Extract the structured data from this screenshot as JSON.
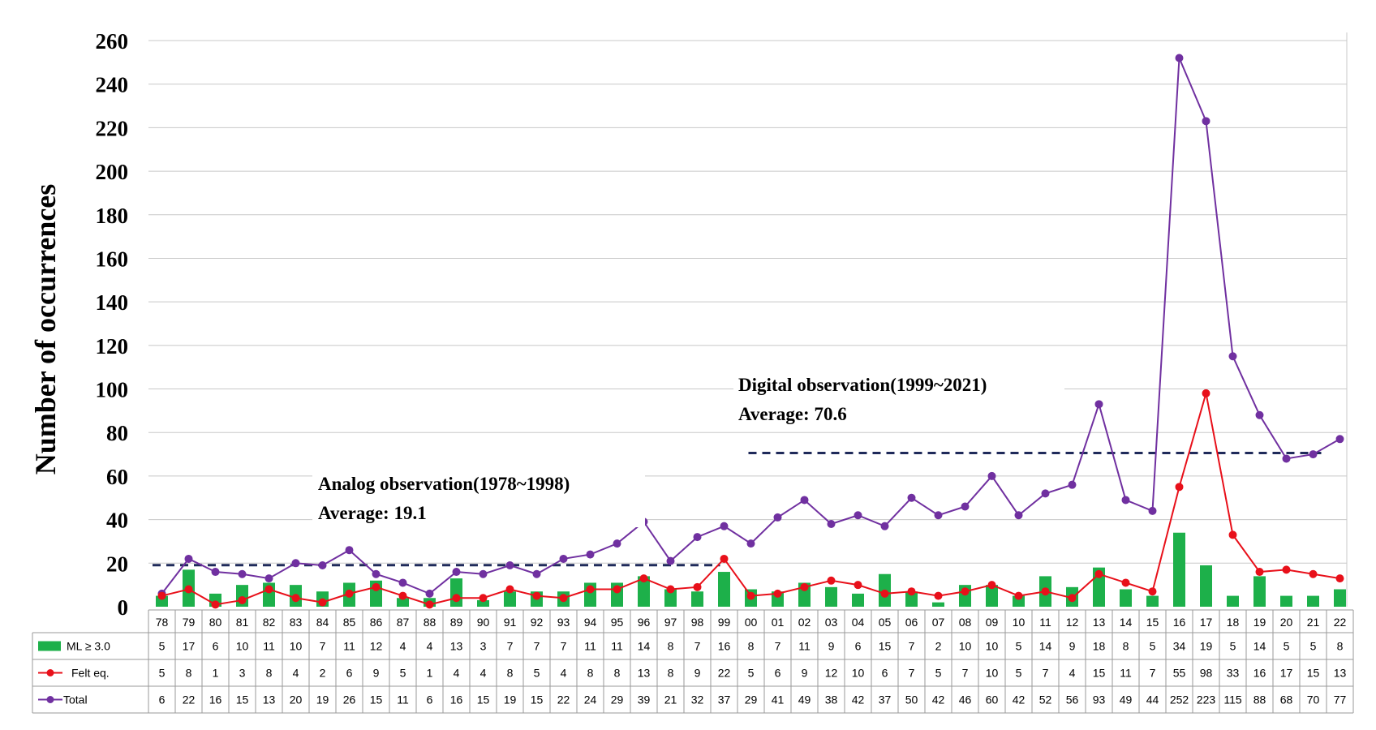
{
  "chart_data": {
    "type": "bar",
    "ylabel": "Number of occurrences",
    "ylim": [
      0,
      260
    ],
    "yticks": [
      0,
      20,
      40,
      60,
      80,
      100,
      120,
      140,
      160,
      180,
      200,
      220,
      240,
      260
    ],
    "categories": [
      "78",
      "79",
      "80",
      "81",
      "82",
      "83",
      "84",
      "85",
      "86",
      "87",
      "88",
      "89",
      "90",
      "91",
      "92",
      "93",
      "94",
      "95",
      "96",
      "97",
      "98",
      "99",
      "00",
      "01",
      "02",
      "03",
      "04",
      "05",
      "06",
      "07",
      "08",
      "09",
      "10",
      "11",
      "12",
      "13",
      "14",
      "15",
      "16",
      "17",
      "18",
      "19",
      "20",
      "21",
      "22"
    ],
    "series": [
      {
        "name": "ML ≥ 3.0",
        "type": "bar",
        "color": "#1DB04A",
        "values": [
          5,
          17,
          6,
          10,
          11,
          10,
          7,
          11,
          12,
          4,
          4,
          13,
          3,
          7,
          7,
          7,
          11,
          11,
          14,
          8,
          7,
          16,
          8,
          7,
          11,
          9,
          6,
          15,
          7,
          2,
          10,
          10,
          5,
          14,
          9,
          18,
          8,
          5,
          34,
          19,
          5,
          14,
          5,
          5,
          8
        ]
      },
      {
        "name": "Felt eq.",
        "type": "line",
        "color": "#E8101A",
        "values": [
          5,
          8,
          1,
          3,
          8,
          4,
          2,
          6,
          9,
          5,
          1,
          4,
          4,
          8,
          5,
          4,
          8,
          8,
          13,
          8,
          9,
          22,
          5,
          6,
          9,
          12,
          10,
          6,
          7,
          5,
          7,
          10,
          5,
          7,
          4,
          15,
          11,
          7,
          55,
          98,
          33,
          16,
          17,
          15,
          13
        ]
      },
      {
        "name": "Total",
        "type": "line",
        "color": "#7030A0",
        "values": [
          6,
          22,
          16,
          15,
          13,
          20,
          19,
          26,
          15,
          11,
          6,
          16,
          15,
          19,
          15,
          22,
          24,
          29,
          39,
          21,
          32,
          37,
          29,
          41,
          49,
          38,
          42,
          37,
          50,
          42,
          46,
          60,
          42,
          52,
          56,
          93,
          49,
          44,
          252,
          223,
          115,
          88,
          68,
          70,
          77
        ]
      }
    ],
    "annotations": [
      {
        "line1": "Analog observation(1978~1998)",
        "line2": "Average: 19.1",
        "average": 19.1
      },
      {
        "line1": "Digital observation(1999~2021)",
        "line2": "Average: 70.6",
        "average": 70.6
      }
    ],
    "grid": true,
    "legend": "data-table-left"
  }
}
